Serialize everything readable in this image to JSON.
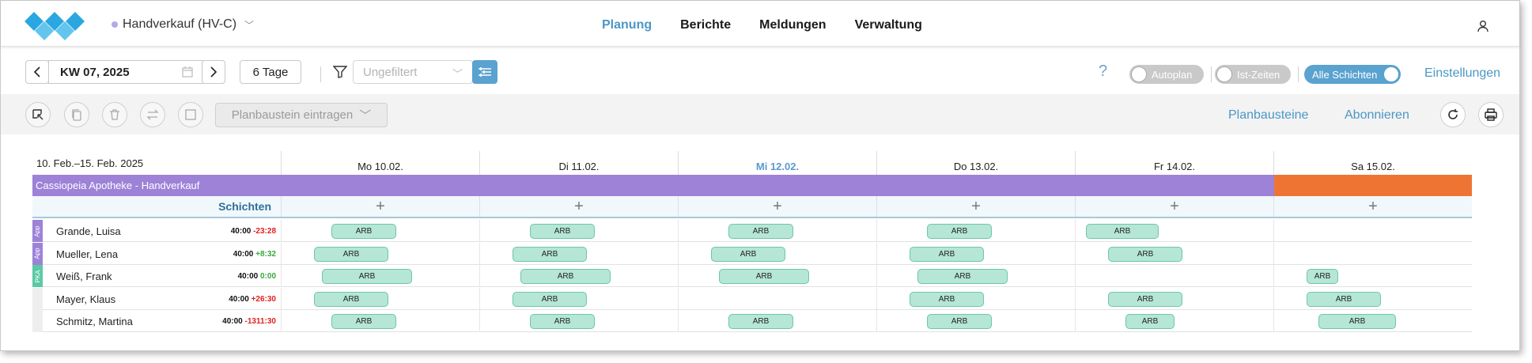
{
  "header": {
    "store_label": "Handverkauf (HV-C)",
    "nav": [
      {
        "label": "Planung",
        "active": true
      },
      {
        "label": "Berichte",
        "active": false
      },
      {
        "label": "Meldungen",
        "active": false
      },
      {
        "label": "Verwaltung",
        "active": false
      }
    ]
  },
  "toolbar": {
    "week_label": "KW 07, 2025",
    "days_label": "6 Tage",
    "filter_placeholder": "Ungefiltert",
    "help": "?",
    "toggles": {
      "autoplan": "Autoplan",
      "ist_zeiten": "Ist-Zeiten",
      "alle_schichten": "Alle Schichten"
    },
    "settings_label": "Einstellungen"
  },
  "actionbar": {
    "planbaustein_label": "Planbaustein eintragen",
    "planbausteine_link": "Planbausteine",
    "abonnieren_link": "Abonnieren"
  },
  "schedule": {
    "range_label": "10. Feb.–15. Feb. 2025",
    "days": [
      {
        "label": "Mo 10.02.",
        "today": false
      },
      {
        "label": "Di 11.02.",
        "today": false
      },
      {
        "label": "Mi 12.02.",
        "today": true
      },
      {
        "label": "Do 13.02.",
        "today": false
      },
      {
        "label": "Fr 14.02.",
        "today": false
      },
      {
        "label": "Sa 15.02.",
        "today": false
      }
    ],
    "group_label": "Cassiopeia Apotheke - Handverkauf",
    "schichten_label": "Schichten",
    "add_symbol": "+",
    "shift_label": "ARB",
    "employees": [
      {
        "name": "Grande, Luisa",
        "hours": "40:00",
        "diff": "-23:28",
        "diff_type": "neg",
        "tag": "App",
        "tag_color": "#9d82d8"
      },
      {
        "name": "Mueller, Lena",
        "hours": "40:00",
        "diff": "+8:32",
        "diff_type": "pos",
        "tag": "App",
        "tag_color": "#9d82d8"
      },
      {
        "name": "Weiß, Frank",
        "hours": "40:00",
        "diff": "0:00",
        "diff_type": "pos",
        "tag": "PKA",
        "tag_color": "#5bc9a4"
      },
      {
        "name": "Mayer, Klaus",
        "hours": "40:00",
        "diff": "+26:30",
        "diff_type": "neg",
        "tag": "",
        "tag_color": "#eeeeee"
      },
      {
        "name": "Schmitz, Martina",
        "hours": "40:00",
        "diff": "-1311:30",
        "diff_type": "neg",
        "tag": "",
        "tag_color": "#eeeeee"
      }
    ]
  },
  "colors": {
    "accent": "#4b97c6",
    "group_bar": "#9d82d8",
    "saturday": "#ee7433",
    "shift_fill": "#b5e6d6"
  }
}
